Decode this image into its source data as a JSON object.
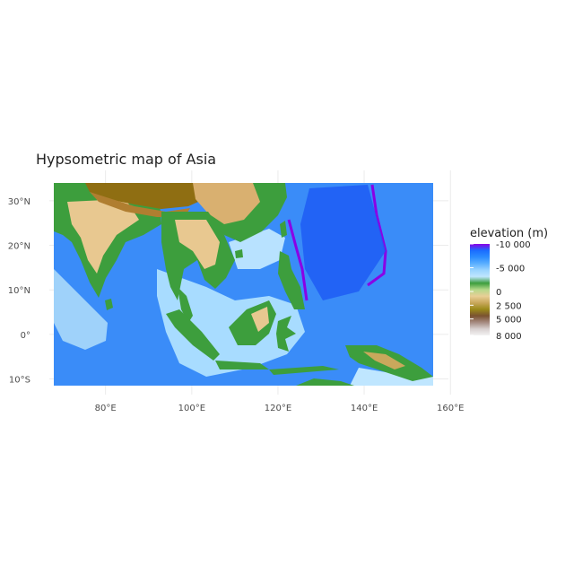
{
  "title": "Hypsometric map of Asia",
  "map": {
    "x_axis": {
      "ticks": [
        {
          "value": 80,
          "label": "80°E"
        },
        {
          "value": 100,
          "label": "100°E"
        },
        {
          "value": 120,
          "label": "120°E"
        },
        {
          "value": 140,
          "label": "140°E"
        },
        {
          "value": 160,
          "label": "160°E"
        }
      ]
    },
    "y_axis": {
      "ticks": [
        {
          "value": 30,
          "label": "30°N"
        },
        {
          "value": 20,
          "label": "20°N"
        },
        {
          "value": 10,
          "label": "10°N"
        },
        {
          "value": 0,
          "label": "0°"
        },
        {
          "value": -10,
          "label": "10°S"
        }
      ]
    },
    "extent": {
      "lon": [
        68,
        156
      ],
      "lat": [
        -11.5,
        34
      ]
    },
    "grid": true
  },
  "legend": {
    "title": "elevation (m)",
    "placement": "right",
    "breaks": [
      {
        "value": -10000,
        "label": "-10 000"
      },
      {
        "value": -5000,
        "label": "-5 000"
      },
      {
        "value": 0,
        "label": "0"
      },
      {
        "value": 2500,
        "label": "2 500"
      },
      {
        "value": 5000,
        "label": "5 000"
      },
      {
        "value": 8000,
        "label": "8 000"
      }
    ],
    "colors": [
      "#8a00e6",
      "#1a6cff",
      "#2b8cff",
      "#5aaeff",
      "#9ad4ff",
      "#bfe6ff",
      "#3d9e3d",
      "#b5d98a",
      "#e8cf96",
      "#c9a85c",
      "#9b8a1a",
      "#7a5230",
      "#a58a80",
      "#d8d0d0",
      "#f4f2f2"
    ]
  },
  "colors": {
    "ocean_deep": "#1f5cf5",
    "ocean": "#3a8cf8",
    "ocean_shallow": "#a8dcff",
    "lowland": "#3d9e3d",
    "hills": "#e8c890",
    "highland": "#b07e30",
    "plateau": "#8f6e12"
  }
}
